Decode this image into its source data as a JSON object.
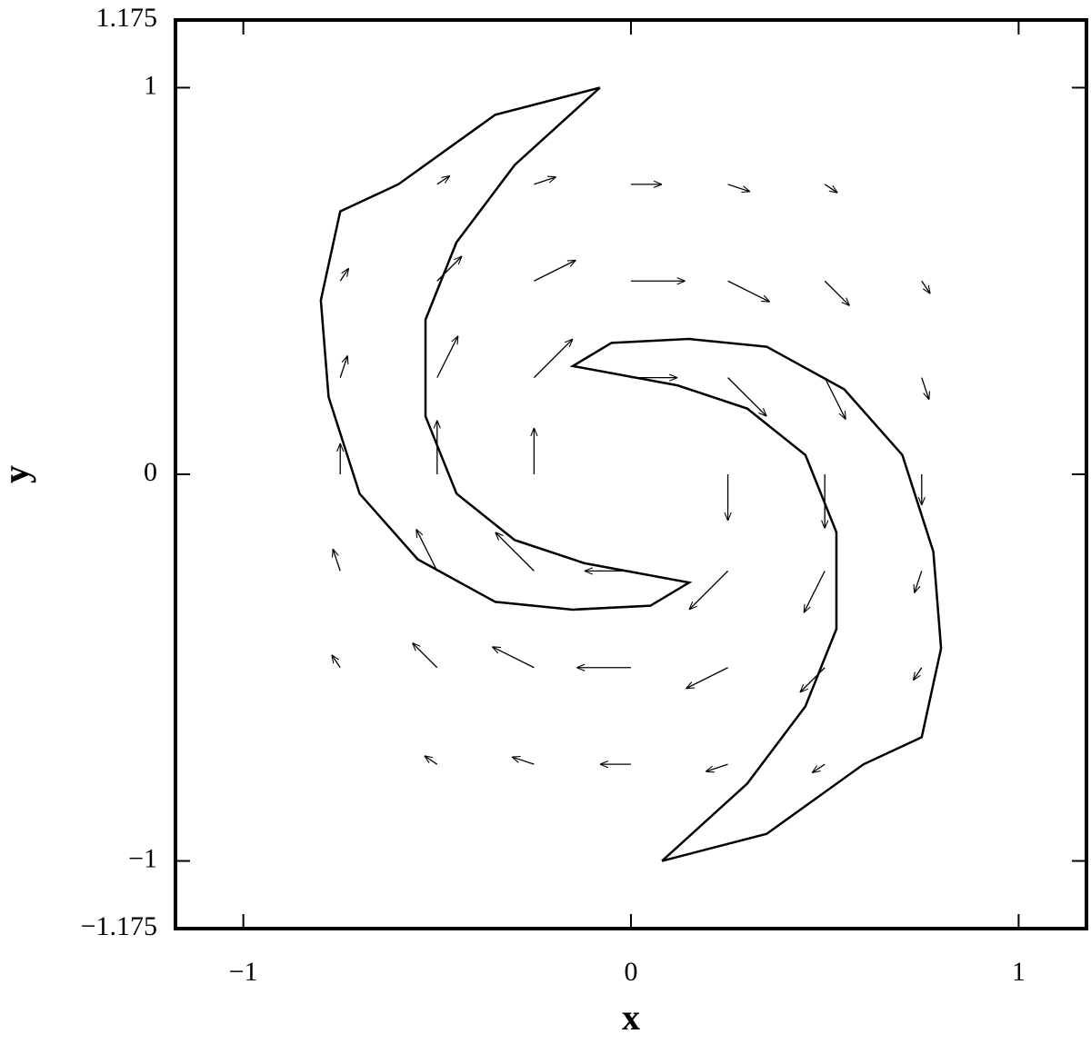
{
  "chart_data": {
    "type": "quiver",
    "xlabel": "x",
    "ylabel": "y",
    "xlim": [
      -1.175,
      1.175
    ],
    "ylim": [
      -1.175,
      1.175
    ],
    "xticks": [
      {
        "value": -1,
        "label": "−1"
      },
      0,
      1
    ],
    "yticks": [
      {
        "value": -1.175,
        "label": "−1.175"
      },
      {
        "value": -1,
        "label": "−1"
      },
      0,
      1,
      1.175
    ],
    "color": "#000000",
    "x": [
      -0.5,
      -0.25,
      0,
      0.25,
      0.5,
      -0.75,
      -0.5,
      -0.25,
      0,
      0.25,
      0.5,
      0.75,
      -0.75,
      -0.5,
      -0.25,
      0,
      0.25,
      0.5,
      0.75,
      -0.75,
      -0.5,
      -0.25,
      0,
      0.25,
      0.5,
      0.75,
      -0.75,
      -0.5,
      -0.25,
      0,
      0.25,
      0.5,
      0.75,
      -0.75,
      -0.5,
      -0.25,
      0,
      0.25,
      0.5,
      0.75,
      -0.5,
      -0.25,
      0,
      0.25,
      0.5
    ],
    "y": [
      0.75,
      0.75,
      0.75,
      0.75,
      0.75,
      0.5,
      0.5,
      0.5,
      0.5,
      0.5,
      0.5,
      0.5,
      0.25,
      0.25,
      0.25,
      0.25,
      0.25,
      0.25,
      0.25,
      0,
      0,
      0,
      0,
      0,
      0,
      0,
      -0.25,
      -0.25,
      -0.25,
      -0.25,
      -0.25,
      -0.25,
      -0.25,
      -0.5,
      -0.5,
      -0.5,
      -0.5,
      -0.5,
      -0.5,
      -0.5,
      -0.75,
      -0.75,
      -0.75,
      -0.75,
      -0.75
    ],
    "u": [
      0.033,
      0.057,
      0.08,
      0.057,
      0.033,
      0.022,
      0.064,
      0.108,
      0.14,
      0.108,
      0.064,
      0.022,
      0.019,
      0.054,
      0.1,
      0.12,
      0.1,
      0.054,
      0.019,
      0,
      0,
      0,
      0,
      0,
      0,
      0,
      -0.019,
      -0.054,
      -0.1,
      -0.12,
      -0.1,
      -0.054,
      -0.019,
      -0.022,
      -0.064,
      -0.108,
      -0.14,
      -0.108,
      -0.064,
      -0.022,
      -0.033,
      -0.057,
      -0.08,
      -0.057,
      -0.033
    ],
    "v": [
      0.022,
      0.019,
      0,
      -0.019,
      -0.022,
      0.033,
      0.064,
      0.054,
      0,
      -0.054,
      -0.064,
      -0.033,
      0.057,
      0.108,
      0.1,
      0,
      -0.1,
      -0.108,
      -0.057,
      0.08,
      0.14,
      0.12,
      0,
      -0.12,
      -0.14,
      -0.08,
      0.057,
      0.108,
      0.1,
      0,
      -0.1,
      -0.108,
      -0.057,
      0.033,
      0.064,
      0.054,
      0,
      -0.054,
      -0.064,
      -0.033,
      0.022,
      0.019,
      0,
      -0.019,
      -0.022
    ],
    "contours": [
      {
        "x": [
          -0.08,
          -0.35,
          -0.6,
          -0.75,
          -0.8,
          -0.78,
          -0.7,
          -0.55,
          -0.35,
          -0.15,
          0.05,
          0.15,
          -0.12,
          -0.3,
          -0.45,
          -0.53,
          -0.53,
          -0.45,
          -0.3,
          -0.08
        ],
        "y": [
          1.0,
          0.93,
          0.75,
          0.68,
          0.45,
          0.2,
          -0.05,
          -0.22,
          -0.33,
          -0.35,
          -0.34,
          -0.28,
          -0.23,
          -0.17,
          -0.05,
          0.15,
          0.4,
          0.6,
          0.8,
          1.0
        ]
      },
      {
        "x": [
          0.08,
          0.35,
          0.6,
          0.75,
          0.8,
          0.78,
          0.7,
          0.55,
          0.35,
          0.15,
          -0.05,
          -0.15,
          0.12,
          0.3,
          0.45,
          0.53,
          0.53,
          0.45,
          0.3,
          0.08
        ],
        "y": [
          -1.0,
          -0.93,
          -0.75,
          -0.68,
          -0.45,
          -0.2,
          0.05,
          0.22,
          0.33,
          0.35,
          0.34,
          0.28,
          0.23,
          0.17,
          0.05,
          -0.15,
          -0.4,
          -0.6,
          -0.8,
          -1.0
        ]
      }
    ]
  }
}
